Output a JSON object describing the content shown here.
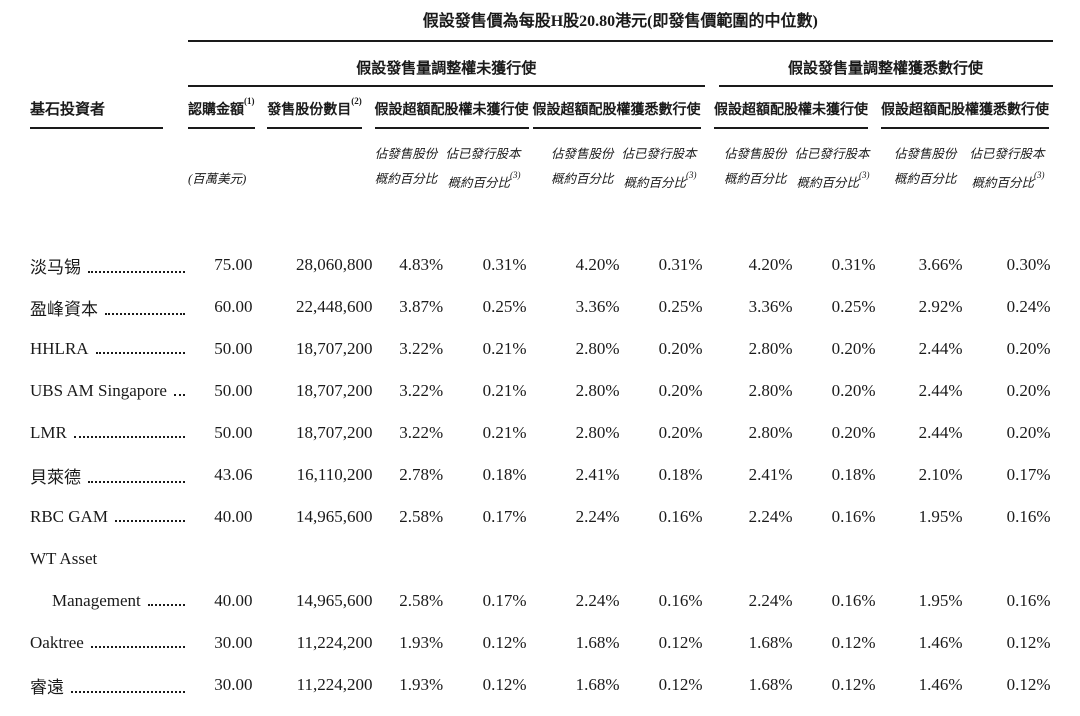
{
  "title": "假設發售價為每股H股20.80港元(即發售價範圍的中位數)",
  "table": {
    "stub_header": "基石投資者",
    "groups": {
      "adjustment_not_exercised": "假設發售量調整權未獲行使",
      "adjustment_fully_exercised": "假設發售量調整權獲悉數行使"
    },
    "columns": {
      "subscription_amount": "認購金額",
      "subscription_amount_note": "(1)",
      "subscription_amount_unit": "(百萬美元)",
      "offer_shares_number": "發售股份數目",
      "offer_shares_number_note": "(2)",
      "overallotment_not_exercised": "假設超額配股權未獲行使",
      "overallotment_fully_exercised": "假設超額配股權獲悉數行使",
      "pct_of_offer_shares_line1": "佔發售股份",
      "pct_of_offer_shares_line2": "概約百分比",
      "pct_of_issued_capital_line1": "佔已發行股本",
      "pct_of_issued_capital_line2": "概約百分比",
      "pct_of_issued_capital_note": "(3)"
    },
    "rows": [
      {
        "name": "淡马锡",
        "leader": true,
        "indent": false,
        "values": [
          "75.00",
          "28,060,800",
          "4.83%",
          "0.31%",
          "4.20%",
          "0.31%",
          "4.20%",
          "0.31%",
          "3.66%",
          "0.30%"
        ]
      },
      {
        "name": "盈峰資本",
        "leader": true,
        "indent": false,
        "values": [
          "60.00",
          "22,448,600",
          "3.87%",
          "0.25%",
          "3.36%",
          "0.25%",
          "3.36%",
          "0.25%",
          "2.92%",
          "0.24%"
        ]
      },
      {
        "name": "HHLRA",
        "leader": true,
        "indent": false,
        "values": [
          "50.00",
          "18,707,200",
          "3.22%",
          "0.21%",
          "2.80%",
          "0.20%",
          "2.80%",
          "0.20%",
          "2.44%",
          "0.20%"
        ]
      },
      {
        "name": "UBS AM Singapore",
        "leader": true,
        "indent": false,
        "values": [
          "50.00",
          "18,707,200",
          "3.22%",
          "0.21%",
          "2.80%",
          "0.20%",
          "2.80%",
          "0.20%",
          "2.44%",
          "0.20%"
        ]
      },
      {
        "name": "LMR",
        "leader": true,
        "indent": false,
        "values": [
          "50.00",
          "18,707,200",
          "3.22%",
          "0.21%",
          "2.80%",
          "0.20%",
          "2.80%",
          "0.20%",
          "2.44%",
          "0.20%"
        ]
      },
      {
        "name": "貝萊德",
        "leader": true,
        "indent": false,
        "values": [
          "43.06",
          "16,110,200",
          "2.78%",
          "0.18%",
          "2.41%",
          "0.18%",
          "2.41%",
          "0.18%",
          "2.10%",
          "0.17%"
        ]
      },
      {
        "name": "RBC GAM",
        "leader": true,
        "indent": false,
        "values": [
          "40.00",
          "14,965,600",
          "2.58%",
          "0.17%",
          "2.24%",
          "0.16%",
          "2.24%",
          "0.16%",
          "1.95%",
          "0.16%"
        ]
      },
      {
        "name": "WT Asset",
        "leader": false,
        "indent": false,
        "values": [
          "",
          "",
          "",
          "",
          "",
          "",
          "",
          "",
          "",
          ""
        ]
      },
      {
        "name": "Management",
        "leader": true,
        "indent": true,
        "values": [
          "40.00",
          "14,965,600",
          "2.58%",
          "0.17%",
          "2.24%",
          "0.16%",
          "2.24%",
          "0.16%",
          "1.95%",
          "0.16%"
        ]
      },
      {
        "name": "Oaktree",
        "leader": true,
        "indent": false,
        "values": [
          "30.00",
          "11,224,200",
          "1.93%",
          "0.12%",
          "1.68%",
          "0.12%",
          "1.68%",
          "0.12%",
          "1.46%",
          "0.12%"
        ]
      },
      {
        "name": "睿遠",
        "leader": true,
        "indent": false,
        "values": [
          "30.00",
          "11,224,200",
          "1.93%",
          "0.12%",
          "1.68%",
          "0.12%",
          "1.68%",
          "0.12%",
          "1.46%",
          "0.12%"
        ]
      }
    ]
  }
}
